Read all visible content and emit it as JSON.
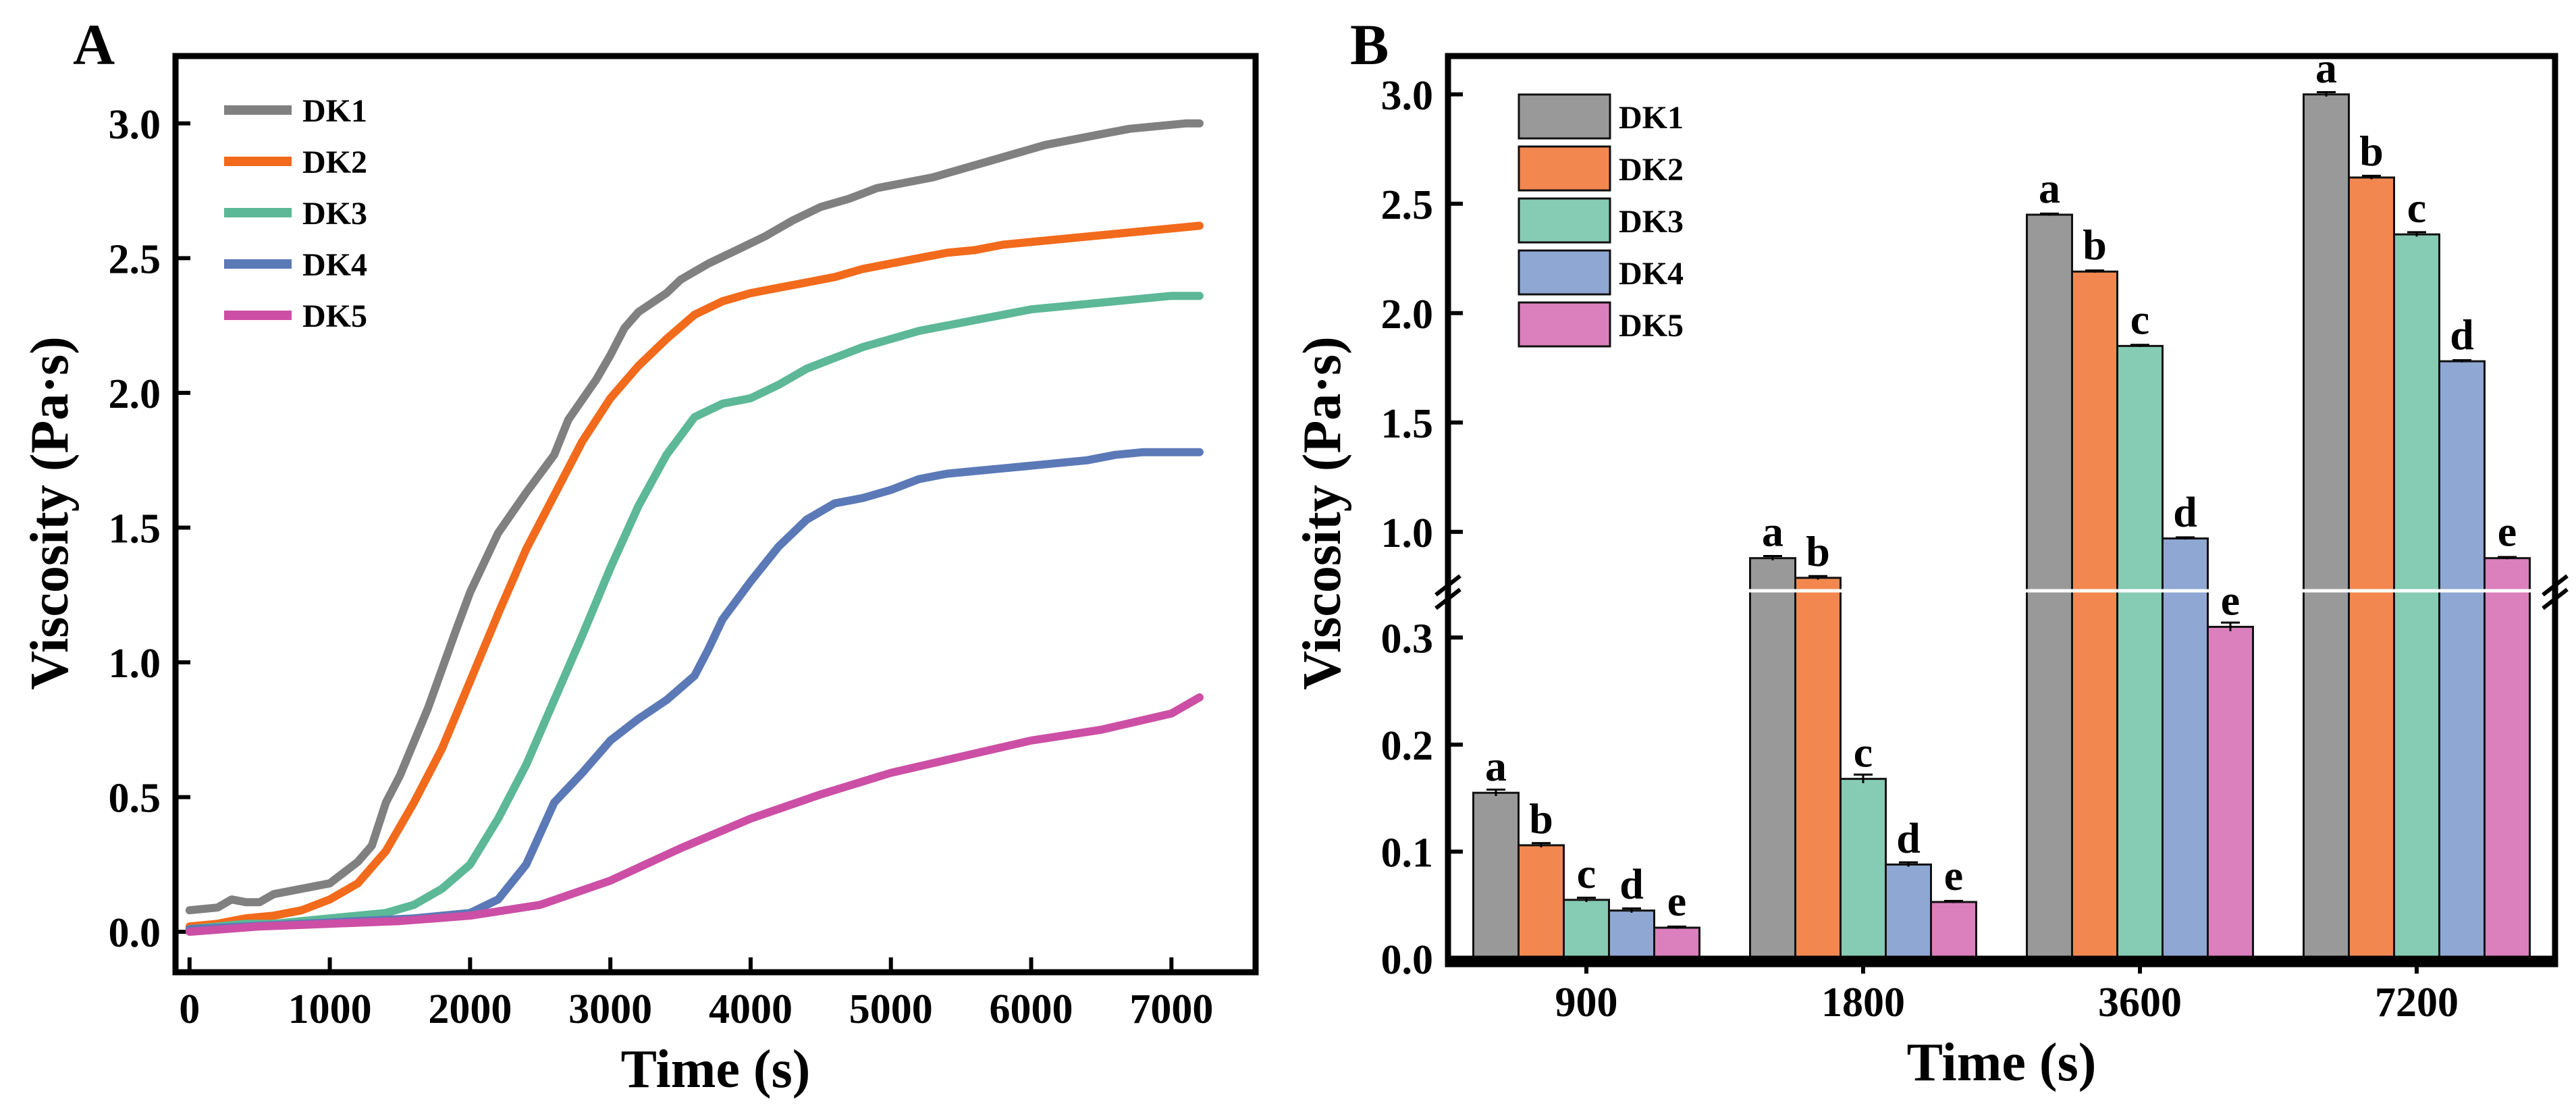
{
  "chart_data": [
    {
      "panel_label": "A",
      "type": "line",
      "xlabel": "Time (s)",
      "ylabel": "Viscosity (Pa·s)",
      "xlim": [
        -100,
        7600
      ],
      "ylim": [
        -0.15,
        3.25
      ],
      "xticks": [
        "0",
        "1000",
        "2000",
        "3000",
        "4000",
        "5000",
        "6000",
        "7000"
      ],
      "yticks": [
        "0.0",
        "0.5",
        "1.0",
        "1.5",
        "2.0",
        "2.5",
        "3.0"
      ],
      "grid": false,
      "legend_position": "top-left",
      "series": [
        {
          "name": "DK1",
          "color": "#808080",
          "points": [
            [
              0,
              0.08
            ],
            [
              200,
              0.09
            ],
            [
              300,
              0.12
            ],
            [
              400,
              0.11
            ],
            [
              500,
              0.11
            ],
            [
              600,
              0.14
            ],
            [
              800,
              0.16
            ],
            [
              1000,
              0.18
            ],
            [
              1200,
              0.26
            ],
            [
              1300,
              0.32
            ],
            [
              1400,
              0.48
            ],
            [
              1500,
              0.58
            ],
            [
              1700,
              0.83
            ],
            [
              1900,
              1.12
            ],
            [
              2000,
              1.26
            ],
            [
              2200,
              1.48
            ],
            [
              2400,
              1.63
            ],
            [
              2600,
              1.77
            ],
            [
              2700,
              1.9
            ],
            [
              2900,
              2.05
            ],
            [
              3000,
              2.14
            ],
            [
              3100,
              2.24
            ],
            [
              3200,
              2.3
            ],
            [
              3400,
              2.37
            ],
            [
              3500,
              2.42
            ],
            [
              3700,
              2.48
            ],
            [
              3900,
              2.53
            ],
            [
              4100,
              2.58
            ],
            [
              4300,
              2.64
            ],
            [
              4500,
              2.69
            ],
            [
              4700,
              2.72
            ],
            [
              4900,
              2.76
            ],
            [
              5100,
              2.78
            ],
            [
              5300,
              2.8
            ],
            [
              5500,
              2.83
            ],
            [
              5700,
              2.86
            ],
            [
              5900,
              2.89
            ],
            [
              6100,
              2.92
            ],
            [
              6300,
              2.94
            ],
            [
              6500,
              2.96
            ],
            [
              6700,
              2.98
            ],
            [
              6900,
              2.99
            ],
            [
              7100,
              3.0
            ],
            [
              7200,
              3.0
            ]
          ]
        },
        {
          "name": "DK2",
          "color": "#f26a1b",
          "points": [
            [
              0,
              0.02
            ],
            [
              200,
              0.03
            ],
            [
              400,
              0.05
            ],
            [
              600,
              0.06
            ],
            [
              800,
              0.08
            ],
            [
              1000,
              0.12
            ],
            [
              1200,
              0.18
            ],
            [
              1400,
              0.3
            ],
            [
              1600,
              0.48
            ],
            [
              1800,
              0.68
            ],
            [
              2000,
              0.93
            ],
            [
              2200,
              1.18
            ],
            [
              2400,
              1.42
            ],
            [
              2600,
              1.62
            ],
            [
              2800,
              1.82
            ],
            [
              3000,
              1.98
            ],
            [
              3200,
              2.1
            ],
            [
              3400,
              2.2
            ],
            [
              3600,
              2.29
            ],
            [
              3800,
              2.34
            ],
            [
              4000,
              2.37
            ],
            [
              4200,
              2.39
            ],
            [
              4400,
              2.41
            ],
            [
              4600,
              2.43
            ],
            [
              4800,
              2.46
            ],
            [
              5000,
              2.48
            ],
            [
              5200,
              2.5
            ],
            [
              5400,
              2.52
            ],
            [
              5600,
              2.53
            ],
            [
              5800,
              2.55
            ],
            [
              6000,
              2.56
            ],
            [
              6200,
              2.57
            ],
            [
              6400,
              2.58
            ],
            [
              6600,
              2.59
            ],
            [
              6800,
              2.6
            ],
            [
              7000,
              2.61
            ],
            [
              7200,
              2.62
            ]
          ]
        },
        {
          "name": "DK3",
          "color": "#5cb896",
          "points": [
            [
              0,
              0.01
            ],
            [
              200,
              0.02
            ],
            [
              400,
              0.03
            ],
            [
              600,
              0.03
            ],
            [
              800,
              0.04
            ],
            [
              1000,
              0.05
            ],
            [
              1200,
              0.06
            ],
            [
              1400,
              0.07
            ],
            [
              1600,
              0.1
            ],
            [
              1800,
              0.16
            ],
            [
              2000,
              0.25
            ],
            [
              2200,
              0.42
            ],
            [
              2400,
              0.62
            ],
            [
              2600,
              0.86
            ],
            [
              2800,
              1.1
            ],
            [
              3000,
              1.35
            ],
            [
              3200,
              1.58
            ],
            [
              3400,
              1.77
            ],
            [
              3600,
              1.91
            ],
            [
              3800,
              1.96
            ],
            [
              4000,
              1.98
            ],
            [
              4200,
              2.03
            ],
            [
              4400,
              2.09
            ],
            [
              4600,
              2.13
            ],
            [
              4800,
              2.17
            ],
            [
              5000,
              2.2
            ],
            [
              5200,
              2.23
            ],
            [
              5400,
              2.25
            ],
            [
              5600,
              2.27
            ],
            [
              5800,
              2.29
            ],
            [
              6000,
              2.31
            ],
            [
              6200,
              2.32
            ],
            [
              6400,
              2.33
            ],
            [
              6600,
              2.34
            ],
            [
              6800,
              2.35
            ],
            [
              7000,
              2.36
            ],
            [
              7200,
              2.36
            ]
          ]
        },
        {
          "name": "DK4",
          "color": "#5b79b7",
          "points": [
            [
              0,
              0.01
            ],
            [
              400,
              0.02
            ],
            [
              800,
              0.03
            ],
            [
              1200,
              0.04
            ],
            [
              1600,
              0.05
            ],
            [
              2000,
              0.07
            ],
            [
              2200,
              0.12
            ],
            [
              2400,
              0.25
            ],
            [
              2600,
              0.48
            ],
            [
              2800,
              0.59
            ],
            [
              3000,
              0.71
            ],
            [
              3200,
              0.79
            ],
            [
              3400,
              0.86
            ],
            [
              3600,
              0.95
            ],
            [
              3700,
              1.05
            ],
            [
              3800,
              1.16
            ],
            [
              4000,
              1.3
            ],
            [
              4200,
              1.43
            ],
            [
              4400,
              1.53
            ],
            [
              4600,
              1.59
            ],
            [
              4800,
              1.61
            ],
            [
              5000,
              1.64
            ],
            [
              5200,
              1.68
            ],
            [
              5400,
              1.7
            ],
            [
              5600,
              1.71
            ],
            [
              5800,
              1.72
            ],
            [
              6000,
              1.73
            ],
            [
              6200,
              1.74
            ],
            [
              6400,
              1.75
            ],
            [
              6600,
              1.77
            ],
            [
              6800,
              1.78
            ],
            [
              7000,
              1.78
            ],
            [
              7200,
              1.78
            ]
          ]
        },
        {
          "name": "DK5",
          "color": "#cc4fa5",
          "points": [
            [
              0,
              0.0
            ],
            [
              500,
              0.02
            ],
            [
              1000,
              0.03
            ],
            [
              1500,
              0.04
            ],
            [
              2000,
              0.06
            ],
            [
              2500,
              0.1
            ],
            [
              3000,
              0.19
            ],
            [
              3500,
              0.31
            ],
            [
              4000,
              0.42
            ],
            [
              4500,
              0.51
            ],
            [
              5000,
              0.59
            ],
            [
              5500,
              0.65
            ],
            [
              6000,
              0.71
            ],
            [
              6500,
              0.75
            ],
            [
              7000,
              0.81
            ],
            [
              7200,
              0.87
            ]
          ]
        }
      ]
    },
    {
      "panel_label": "B",
      "type": "bar",
      "xlabel": "Time (s)",
      "ylabel": "Viscosity (Pa·s)",
      "categories": [
        "900",
        "1800",
        "3600",
        "7200"
      ],
      "axis_break": true,
      "lower_segment": {
        "ylim": [
          0.0,
          0.35
        ],
        "yticks": [
          "0.0",
          "0.1",
          "0.2",
          "0.3"
        ]
      },
      "upper_segment": {
        "ylim": [
          0.7,
          3.2
        ],
        "yticks": [
          "1.0",
          "1.5",
          "2.0",
          "2.5",
          "3.0"
        ]
      },
      "grid": false,
      "legend_position": "top-left",
      "series": [
        {
          "name": "DK1",
          "color": "#999999",
          "values": [
            0.155,
            0.88,
            2.45,
            3.0
          ],
          "errors": [
            0.003,
            0.01,
            0.005,
            0.01
          ],
          "letters": [
            "a",
            "a",
            "a",
            "a"
          ]
        },
        {
          "name": "DK2",
          "color": "#f2884f",
          "values": [
            0.106,
            0.79,
            2.19,
            2.62
          ],
          "errors": [
            0.002,
            0.008,
            0.005,
            0.008
          ],
          "letters": [
            "b",
            "b",
            "b",
            "b"
          ]
        },
        {
          "name": "DK3",
          "color": "#86cbb3",
          "values": [
            0.055,
            0.168,
            1.85,
            2.36
          ],
          "errors": [
            0.002,
            0.004,
            0.005,
            0.01
          ],
          "letters": [
            "c",
            "c",
            "c",
            "c"
          ]
        },
        {
          "name": "DK4",
          "color": "#8fa7d3",
          "values": [
            0.045,
            0.088,
            0.97,
            1.78
          ],
          "errors": [
            0.002,
            0.002,
            0.005,
            0.005
          ],
          "letters": [
            "d",
            "d",
            "d",
            "d"
          ]
        },
        {
          "name": "DK5",
          "color": "#dc7fbd",
          "values": [
            0.029,
            0.053,
            0.31,
            0.88
          ],
          "errors": [
            0.001,
            0.001,
            0.004,
            0.005
          ],
          "letters": [
            "e",
            "e",
            "e",
            "e"
          ]
        }
      ]
    }
  ]
}
